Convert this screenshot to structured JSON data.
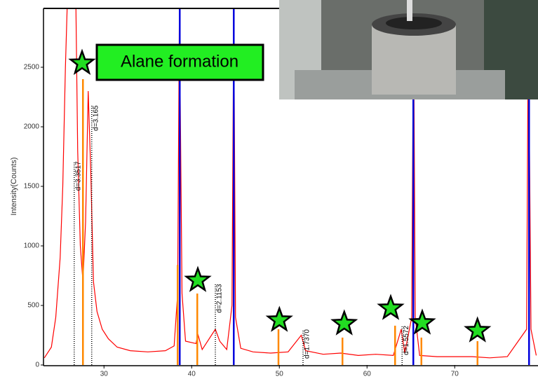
{
  "chart_data": {
    "type": "line",
    "y_label": "Intensity(Counts)",
    "annotation": "Alane formation",
    "xlim": [
      23.1,
      79.5
    ],
    "ylim": [
      0,
      3000
    ],
    "xticks": [
      30,
      40,
      50,
      60,
      70
    ],
    "yticks": [
      0,
      500,
      1000,
      1500,
      2000,
      2500
    ],
    "series": [
      {
        "color": "#ff0000",
        "x": [
          23.2,
          24,
          24.5,
          25,
          25.3,
          25.6,
          25.8,
          26.8,
          27,
          27.3,
          27.6,
          27.9,
          28.2,
          28.5,
          28.8,
          29.2,
          29.8,
          30.5,
          31.5,
          33,
          35,
          37,
          38,
          38.4,
          38.6,
          38.9,
          39.3,
          40.5,
          40.7,
          41.2,
          42.7,
          43.2,
          44,
          44.6,
          44.8,
          45,
          45.6,
          47,
          49,
          51,
          52.5,
          53,
          55,
          57,
          59,
          61,
          63,
          63.9,
          64.3,
          65.1,
          65.3,
          65.5,
          66,
          68,
          70,
          72,
          74,
          76,
          78.2,
          78.4,
          78.7,
          79.3
        ],
        "values": [
          60,
          150,
          400,
          900,
          1500,
          2500,
          3000,
          3000,
          1800,
          1000,
          700,
          1200,
          2300,
          1600,
          700,
          450,
          300,
          220,
          150,
          120,
          110,
          120,
          160,
          600,
          3000,
          600,
          200,
          180,
          260,
          130,
          300,
          200,
          130,
          500,
          3000,
          400,
          140,
          110,
          100,
          110,
          250,
          120,
          90,
          100,
          80,
          90,
          80,
          300,
          100,
          400,
          3000,
          400,
          80,
          70,
          70,
          70,
          60,
          70,
          300,
          3000,
          300,
          80
        ]
      }
    ],
    "reference_lines": {
      "color": "#0000dd",
      "x": [
        38.64,
        44.8,
        65.28,
        78.48
      ]
    },
    "reference_peaks": {
      "color": "#ff8800",
      "x": [
        27.6,
        38.4,
        40.64,
        49.9,
        57.2,
        63.2,
        66.2,
        72.6
      ],
      "values": [
        2400,
        840,
        600,
        300,
        230,
        330,
        230,
        200
      ]
    },
    "stars": {
      "color": "#22dd22",
      "x": [
        27.5,
        40.7,
        50,
        57.4,
        62.7,
        66.3,
        72.6
      ],
      "values": [
        2534,
        711,
        376,
        347,
        476,
        353,
        288
      ]
    },
    "d_spacings": {
      "x": [
        26.6,
        28.6,
        42.7,
        52.7,
        64.0
      ],
      "values": [
        1710,
        2180,
        680,
        300,
        330
      ],
      "labels": [
        "d=3.3517",
        "d=3.165",
        "d=2.1153",
        "d=1.7370",
        "d=1.5572"
      ]
    }
  }
}
